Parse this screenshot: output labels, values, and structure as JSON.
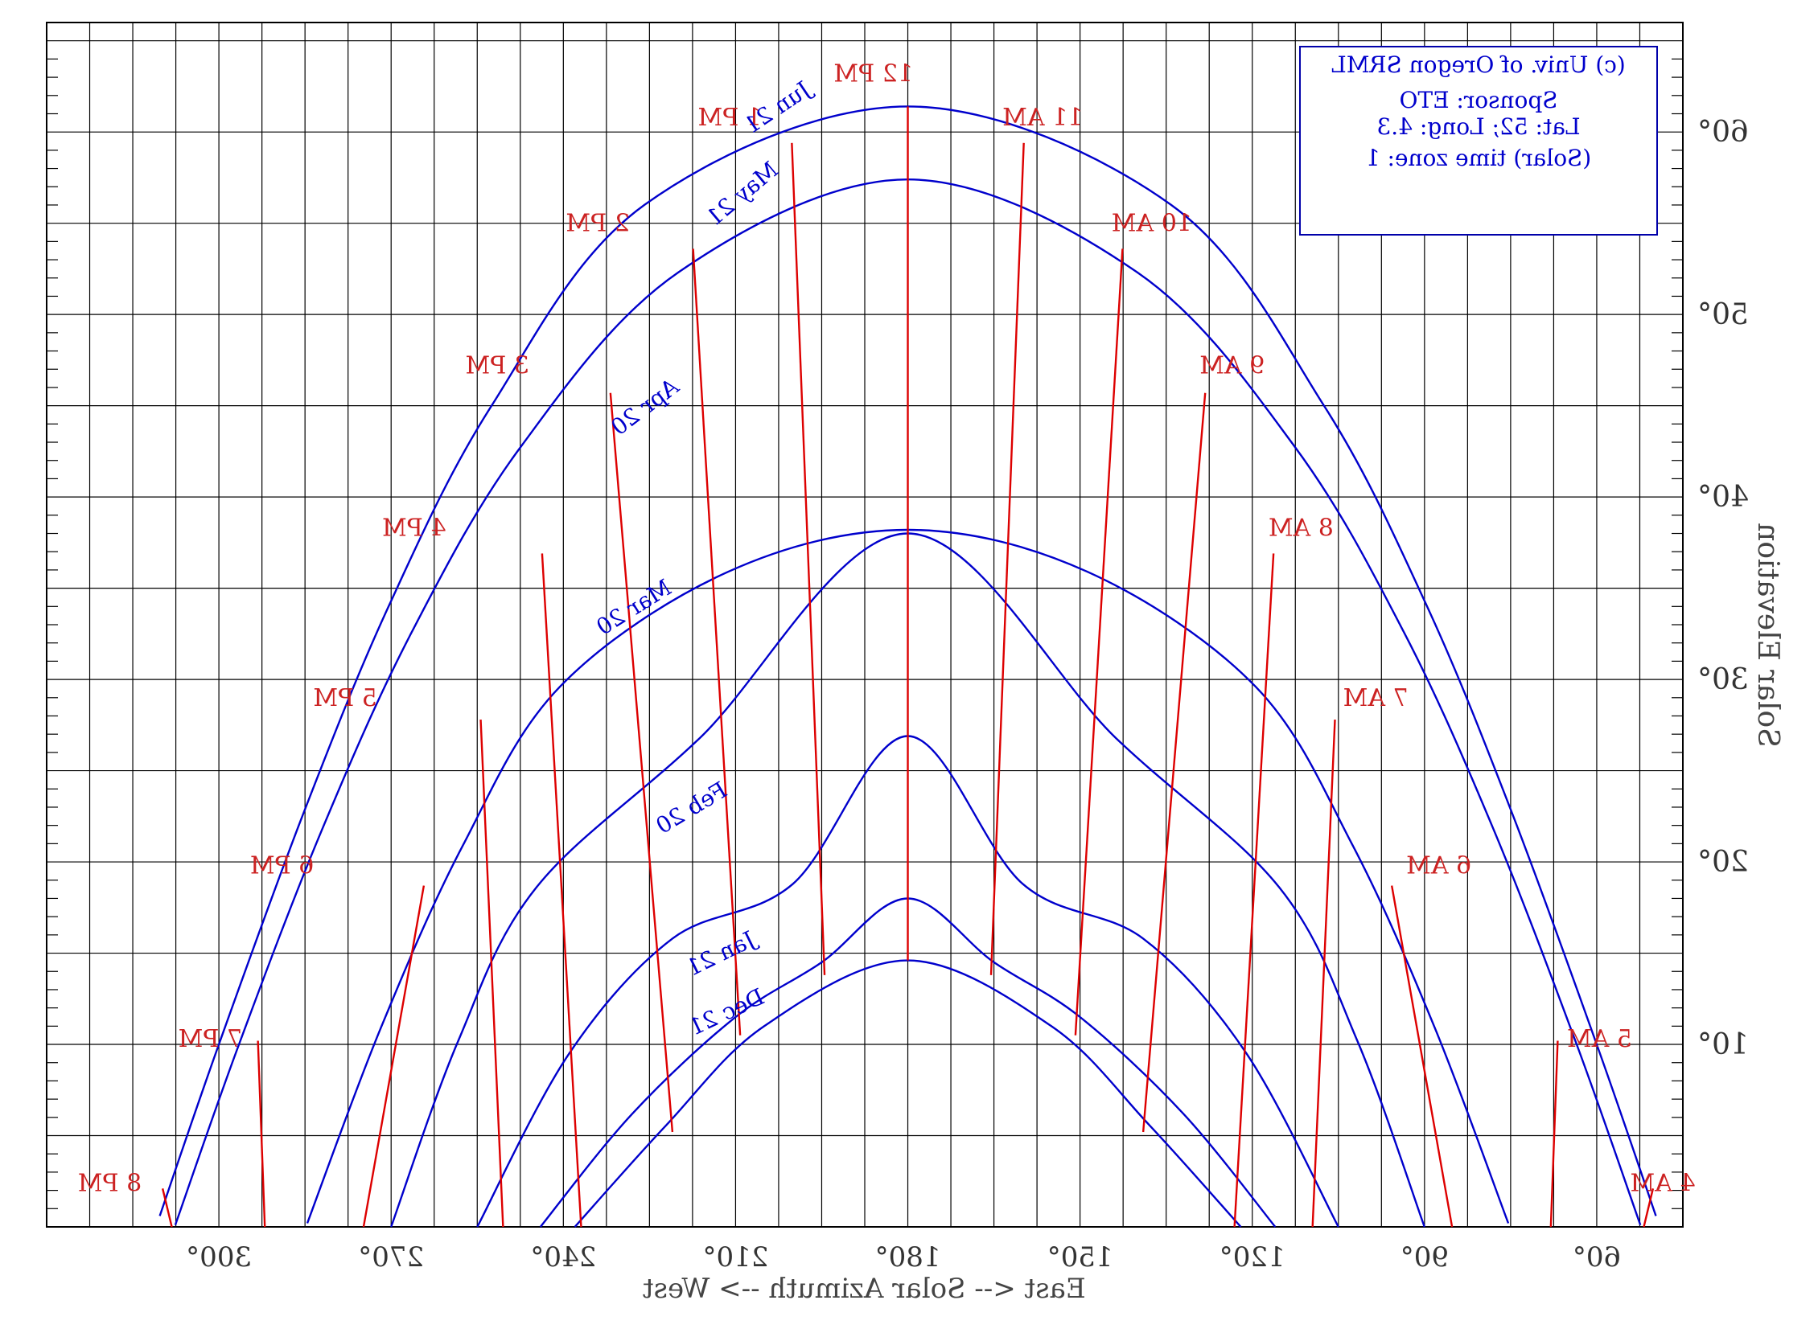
{
  "chart_data": {
    "type": "line",
    "mirrored_rendering": true,
    "title": "",
    "xlabel": "East <-- Solar Azimuth --> West",
    "ylabel": "Solar Elevation",
    "xlim": [
      330,
      45
    ],
    "ylim": [
      0,
      66
    ],
    "grid": true,
    "x_tick_labels": [
      {
        "value": 300,
        "label": "300°"
      },
      {
        "value": 270,
        "label": "270°"
      },
      {
        "value": 240,
        "label": "240°"
      },
      {
        "value": 210,
        "label": "210°"
      },
      {
        "value": 180,
        "label": "180°"
      },
      {
        "value": 150,
        "label": "150°"
      },
      {
        "value": 120,
        "label": "120°"
      },
      {
        "value": 90,
        "label": "90°"
      },
      {
        "value": 60,
        "label": "60°"
      }
    ],
    "y_tick_labels": [
      {
        "value": 10,
        "label": "10°"
      },
      {
        "value": 20,
        "label": "20°"
      },
      {
        "value": 30,
        "label": "30°"
      },
      {
        "value": 40,
        "label": "40°"
      },
      {
        "value": 50,
        "label": "50°"
      },
      {
        "value": 60,
        "label": "60°"
      }
    ],
    "colors": {
      "date_curves": "#0000cc",
      "hour_lines": "#dd0000",
      "grid": "#000000"
    },
    "date_curves": [
      {
        "name": "Jun 21",
        "points": [
          [
            310.3,
            0.6
          ],
          [
            300,
            10
          ],
          [
            285.1,
            22.8
          ],
          [
            270.3,
            34.1
          ],
          [
            252.5,
            45
          ],
          [
            225.9,
            56
          ],
          [
            180,
            61.4
          ],
          [
            134.1,
            56
          ],
          [
            107.5,
            45
          ],
          [
            89.7,
            34.1
          ],
          [
            74.9,
            22.8
          ],
          [
            60,
            10
          ],
          [
            49.7,
            0.6
          ]
        ]
      },
      {
        "name": "May 21",
        "points": [
          [
            307.6,
            0.1
          ],
          [
            296.5,
            10
          ],
          [
            282,
            21.8
          ],
          [
            266.4,
            32.6
          ],
          [
            247.3,
            42.8
          ],
          [
            220,
            52.3
          ],
          [
            180,
            57.4
          ],
          [
            140,
            52.3
          ],
          [
            112.7,
            42.8
          ],
          [
            93.6,
            32.6
          ],
          [
            78,
            21.8
          ],
          [
            63.5,
            10
          ],
          [
            52.4,
            0.1
          ]
        ]
      },
      {
        "name": "Apr 20",
        "points": [
          [
            284.6,
            0.2
          ],
          [
            271.8,
            10.9
          ],
          [
            257.5,
            20.9
          ],
          [
            240.6,
            29.6
          ],
          [
            211.3,
            35.9
          ],
          [
            180,
            38.2
          ],
          [
            148.7,
            35.9
          ],
          [
            119.4,
            29.6
          ],
          [
            102.5,
            20.9
          ],
          [
            88.2,
            10.9
          ],
          [
            75.4,
            0.2
          ]
        ]
      },
      {
        "name": "Mar 20",
        "points": [
          [
            270,
            0
          ],
          [
            258.3,
            10.2
          ],
          [
            244.7,
            18.6
          ],
          [
            216.2,
            26.8
          ],
          [
            180,
            38.0
          ],
          [
            143.8,
            26.8
          ],
          [
            115.3,
            18.6
          ],
          [
            101.7,
            10.2
          ],
          [
            90,
            0
          ]
        ]
      },
      {
        "name": "Feb 20",
        "points": [
          [
            255,
            0
          ],
          [
            239,
            9.5
          ],
          [
            221,
            15.8
          ],
          [
            200,
            18.8
          ],
          [
            180,
            26.9
          ],
          [
            160,
            18.8
          ],
          [
            139,
            15.8
          ],
          [
            121,
            9.5
          ],
          [
            105,
            0
          ]
        ]
      },
      {
        "name": "Jan 21",
        "points": [
          [
            244,
            0
          ],
          [
            228,
            6.2
          ],
          [
            210,
            11.5
          ],
          [
            195,
            14.5
          ],
          [
            180,
            18.0
          ],
          [
            165,
            14.5
          ],
          [
            150,
            11.5
          ],
          [
            132,
            6.2
          ],
          [
            116,
            0
          ]
        ]
      },
      {
        "name": "Dec 21",
        "points": [
          [
            238,
            0
          ],
          [
            222,
            5.6
          ],
          [
            205,
            11.0
          ],
          [
            180,
            14.6
          ],
          [
            155,
            11.0
          ],
          [
            138,
            5.6
          ],
          [
            122,
            0
          ]
        ]
      }
    ],
    "hour_lines": [
      {
        "label": "12 PM",
        "points": [
          [
            180,
            14.6
          ],
          [
            180,
            61.4
          ]
        ]
      },
      {
        "label": "11 AM",
        "points": [
          [
            165.5,
            13.8
          ],
          [
            159.8,
            59.4
          ]
        ]
      },
      {
        "label": "10 AM",
        "points": [
          [
            150.8,
            10.5
          ],
          [
            142.6,
            53.6
          ]
        ]
      },
      {
        "label": "9 AM",
        "points": [
          [
            139,
            5.2
          ],
          [
            128.2,
            45.7
          ]
        ]
      },
      {
        "label": "8 AM",
        "points": [
          [
            123.1,
            0
          ],
          [
            116.3,
            36.9
          ]
        ]
      },
      {
        "label": "7 AM",
        "points": [
          [
            109.5,
            0
          ],
          [
            105.6,
            27.8
          ]
        ]
      },
      {
        "label": "6 AM",
        "points": [
          [
            85.2,
            0
          ],
          [
            95.7,
            18.7
          ]
        ]
      },
      {
        "label": "5 AM",
        "points": [
          [
            68,
            0
          ],
          [
            66.8,
            10.2
          ]
        ]
      },
      {
        "label": "4 AM",
        "points": [
          [
            51.8,
            0
          ],
          [
            50.2,
            2.1
          ]
        ]
      },
      {
        "label": "1 PM",
        "points": [
          [
            194.5,
            13.8
          ],
          [
            200.2,
            59.4
          ]
        ]
      },
      {
        "label": "2 PM",
        "points": [
          [
            209.2,
            10.5
          ],
          [
            217.4,
            53.6
          ]
        ]
      },
      {
        "label": "3 PM",
        "points": [
          [
            221,
            5.2
          ],
          [
            231.8,
            45.7
          ]
        ]
      },
      {
        "label": "4 PM",
        "points": [
          [
            236.9,
            0
          ],
          [
            243.7,
            36.9
          ]
        ]
      },
      {
        "label": "5 PM",
        "points": [
          [
            250.5,
            0
          ],
          [
            254.4,
            27.8
          ]
        ]
      },
      {
        "label": "6 PM",
        "points": [
          [
            274.8,
            0
          ],
          [
            264.3,
            18.7
          ]
        ]
      },
      {
        "label": "7 PM",
        "points": [
          [
            292,
            0
          ],
          [
            293.2,
            10.2
          ]
        ]
      },
      {
        "label": "8 PM",
        "points": [
          [
            308.2,
            0
          ],
          [
            309.8,
            2.1
          ]
        ]
      }
    ]
  },
  "info_box": {
    "line1": "(c) Univ. of Oregon SRML",
    "line2": "Sponsor: ETO",
    "line3": "Lat: 52; Long: 4.3",
    "line4": "(Solar) time zone: 1"
  },
  "date_labels": [
    {
      "text": "Jun 21",
      "x": 202,
      "y": 61.0,
      "angle": -34
    },
    {
      "text": "May 21",
      "x": 208,
      "y": 56.3,
      "angle": -40
    },
    {
      "text": "Apr 20",
      "x": 225,
      "y": 44.6,
      "angle": -37
    },
    {
      "text": "Mar 20",
      "x": 227,
      "y": 33.6,
      "angle": -32
    },
    {
      "text": "Feb 20",
      "x": 217,
      "y": 22.6,
      "angle": -31
    },
    {
      "text": "Jan 21",
      "x": 212,
      "y": 14.6,
      "angle": -26
    },
    {
      "text": "Dec 21",
      "x": 211,
      "y": 11.4,
      "angle": -25
    }
  ],
  "time_labels": [
    {
      "text": "12 PM",
      "x": 186,
      "y": 63.2
    },
    {
      "text": "11 AM",
      "x": 156.5,
      "y": 60.8
    },
    {
      "text": "10 AM",
      "x": 137.5,
      "y": 55.0
    },
    {
      "text": "9 AM",
      "x": 123.5,
      "y": 47.2
    },
    {
      "text": "8 AM",
      "x": 111.5,
      "y": 38.3
    },
    {
      "text": "7 AM",
      "x": 98.5,
      "y": 29.0
    },
    {
      "text": "6 AM",
      "x": 87.5,
      "y": 19.8
    },
    {
      "text": "5 AM",
      "x": 59.5,
      "y": 10.3
    },
    {
      "text": "4 AM",
      "x": 48.5,
      "y": 2.4
    },
    {
      "text": "1 PM",
      "x": 211,
      "y": 60.8
    },
    {
      "text": "2 PM",
      "x": 234,
      "y": 55.0
    },
    {
      "text": "3 PM",
      "x": 251.5,
      "y": 47.2
    },
    {
      "text": "4 PM",
      "x": 266,
      "y": 38.3
    },
    {
      "text": "5 PM",
      "x": 278,
      "y": 29.0
    },
    {
      "text": "6 PM",
      "x": 289,
      "y": 19.8
    },
    {
      "text": "7 PM",
      "x": 301.5,
      "y": 10.3
    },
    {
      "text": "8 PM",
      "x": 319,
      "y": 2.4
    }
  ]
}
